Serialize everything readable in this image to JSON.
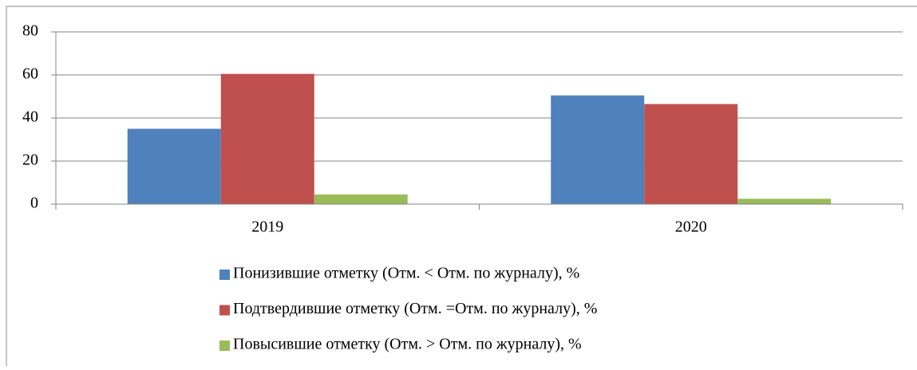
{
  "chart_data": {
    "type": "bar",
    "categories": [
      "2019",
      "2020"
    ],
    "series": [
      {
        "name": "Понизившие отметку (Отм. < Отм. по журналу), %",
        "color": "#4f81bd",
        "values": [
          35,
          50.5
        ]
      },
      {
        "name": "Подтвердившие отметку (Отм. =Отм. по журналу), %",
        "color": "#c0504d",
        "values": [
          60.5,
          46.5
        ]
      },
      {
        "name": "Повысившие отметку (Отм. >  Отм. по журналу), %",
        "color": "#9bbb59",
        "values": [
          4.5,
          2.5
        ]
      }
    ],
    "ylim": [
      0,
      80
    ],
    "yticks": [
      0,
      20,
      40,
      60,
      80
    ],
    "grid": true,
    "legend": "bottom"
  }
}
